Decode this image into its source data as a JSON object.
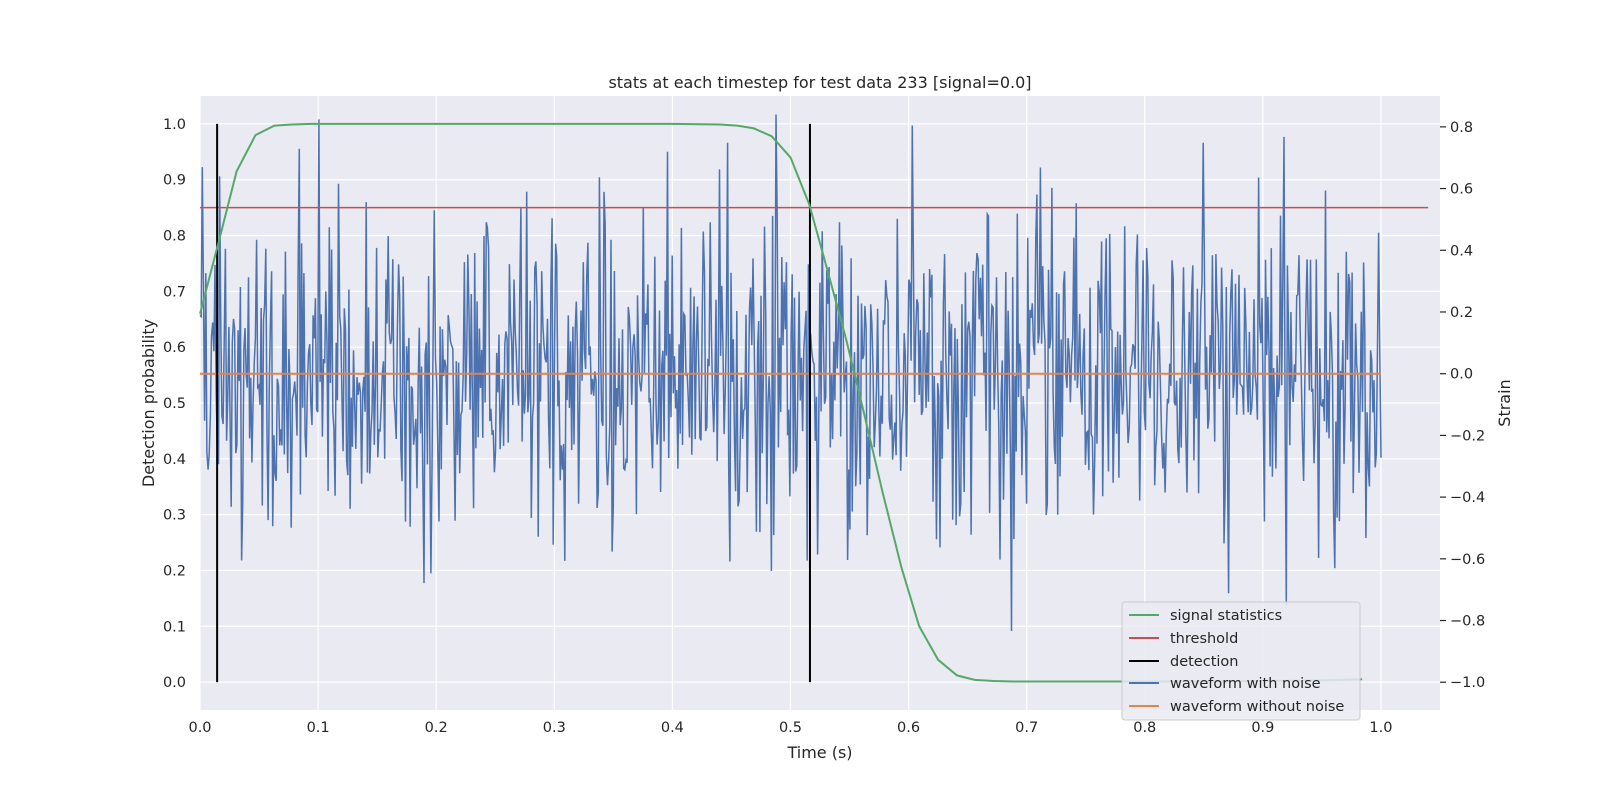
{
  "chart_data": {
    "type": "line",
    "title": "stats at each timestep for test data 233 [signal=0.0]",
    "xlabel": "Time (s)",
    "ylabel_left": "Detection probability",
    "ylabel_right": "Strain",
    "xlim": [
      0.0,
      1.05
    ],
    "ylim_left": [
      -0.05,
      1.05
    ],
    "ylim_right": [
      -1.09,
      0.9
    ],
    "x_ticks": [
      "0.0",
      "0.1",
      "0.2",
      "0.3",
      "0.4",
      "0.5",
      "0.6",
      "0.7",
      "0.8",
      "0.9",
      "1.0"
    ],
    "y_ticks_left": [
      "0.0",
      "0.1",
      "0.2",
      "0.3",
      "0.4",
      "0.5",
      "0.6",
      "0.7",
      "0.8",
      "0.9",
      "1.0"
    ],
    "y_ticks_right": [
      "−1.0",
      "−0.8",
      "−0.6",
      "−0.4",
      "−0.2",
      "0.0",
      "0.2",
      "0.4",
      "0.6",
      "0.8"
    ],
    "grid": true,
    "legend_position": "lower-right",
    "series": [
      {
        "name": "signal statistics",
        "axis": "left",
        "color": "#55a868",
        "x": [
          0.0,
          0.016,
          0.031,
          0.047,
          0.063,
          0.078,
          0.094,
          0.2,
          0.3,
          0.4,
          0.44,
          0.455,
          0.469,
          0.484,
          0.5,
          0.516,
          0.531,
          0.547,
          0.563,
          0.578,
          0.594,
          0.609,
          0.625,
          0.641,
          0.656,
          0.672,
          0.688,
          0.75,
          0.85,
          0.95,
          0.984
        ],
        "y": [
          0.66,
          0.79,
          0.915,
          0.98,
          0.997,
          0.999,
          1.0,
          1.0,
          1.0,
          1.0,
          0.999,
          0.997,
          0.992,
          0.978,
          0.94,
          0.855,
          0.74,
          0.615,
          0.475,
          0.34,
          0.205,
          0.1,
          0.04,
          0.012,
          0.004,
          0.002,
          0.001,
          0.001,
          0.001,
          0.003,
          0.005
        ]
      },
      {
        "name": "threshold",
        "axis": "left",
        "color": "#c44e52",
        "x": [
          0.0,
          1.04
        ],
        "y": [
          0.85,
          0.85
        ]
      },
      {
        "name": "detection",
        "axis": "left",
        "color": "#000000",
        "x": [
          0.0145,
          0.5165
        ],
        "y_range": [
          0.0,
          1.0
        ]
      },
      {
        "name": "waveform with noise",
        "axis": "right",
        "color": "#4c72b0",
        "x_range": [
          0.0,
          1.0
        ],
        "n_points": 1024,
        "y_min": -1.0,
        "y_max": 0.84,
        "approx_std": 0.25,
        "note_values_approximate": "noise samples read as approximate"
      },
      {
        "name": "waveform without noise",
        "axis": "right",
        "color": "#dd8452",
        "x": [
          0.0,
          1.0
        ],
        "y": [
          0.0,
          0.0
        ]
      }
    ]
  }
}
